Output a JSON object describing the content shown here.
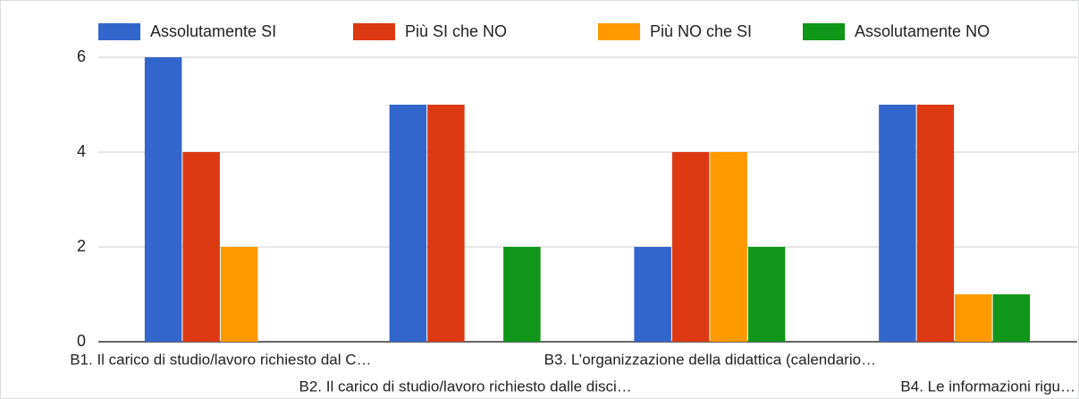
{
  "chart_data": {
    "type": "bar",
    "categories": [
      "B1. Il carico di studio/lavoro richiesto dal C…",
      "B2. Il carico di studio/lavoro richiesto dalle disci…",
      "B3. L’organizzazione della didattica (calendario…",
      "B4. Le informazioni rigu…"
    ],
    "series": [
      {
        "name": "Assolutamente SI",
        "color": "#3366cc",
        "values": [
          6,
          5,
          2,
          5
        ]
      },
      {
        "name": "Più SI che NO",
        "color": "#dc3912",
        "values": [
          4,
          5,
          4,
          5
        ]
      },
      {
        "name": "Più NO che SI",
        "color": "#ff9900",
        "values": [
          2,
          0,
          4,
          1
        ]
      },
      {
        "name": "Assolutamente NO",
        "color": "#109618",
        "values": [
          0,
          2,
          2,
          1
        ]
      }
    ],
    "ylim": [
      0,
      6
    ],
    "yticks": [
      0,
      2,
      4,
      6
    ],
    "grid": true,
    "legend": "top"
  }
}
